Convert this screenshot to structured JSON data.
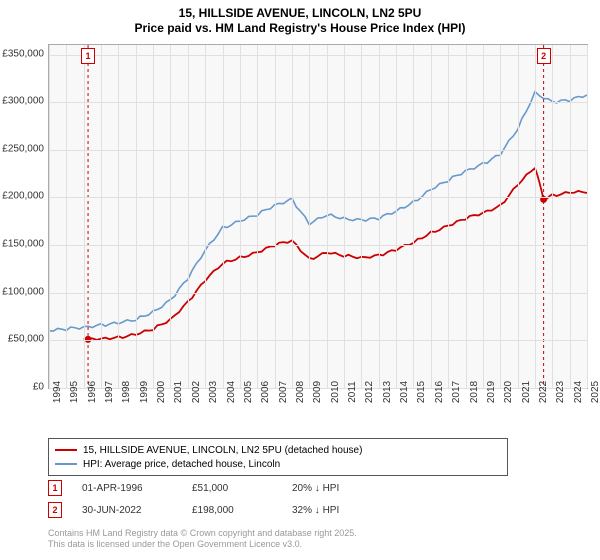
{
  "chart": {
    "title_line1": "15, HILLSIDE AVENUE, LINCOLN, LN2 5PU",
    "title_line2": "Price paid vs. HM Land Registry's House Price Index (HPI)",
    "background_color": "#f8f8f8",
    "grid_color": "#e0e0e0",
    "border_color": "#aaaaaa",
    "x_years": [
      1994,
      1995,
      1996,
      1997,
      1998,
      1999,
      2000,
      2001,
      2002,
      2003,
      2004,
      2005,
      2006,
      2007,
      2008,
      2009,
      2010,
      2011,
      2012,
      2013,
      2014,
      2015,
      2016,
      2017,
      2018,
      2019,
      2020,
      2021,
      2022,
      2023,
      2024,
      2025
    ],
    "y_ticks": [
      0,
      50000,
      100000,
      150000,
      200000,
      250000,
      300000,
      350000
    ],
    "y_tick_labels": [
      "£0",
      "£50,000",
      "£100,000",
      "£150,000",
      "£200,000",
      "£250,000",
      "£300,000",
      "£350,000"
    ],
    "ylim": [
      0,
      360000
    ],
    "series": {
      "hpi": {
        "color": "#6699cc",
        "width": 1.6,
        "label": "HPI: Average price, detached house, Lincoln",
        "points": [
          [
            1994,
            60000
          ],
          [
            1995,
            62000
          ],
          [
            1996,
            64000
          ],
          [
            1997,
            66000
          ],
          [
            1998,
            68000
          ],
          [
            1999,
            72000
          ],
          [
            2000,
            80000
          ],
          [
            2001,
            92000
          ],
          [
            2002,
            115000
          ],
          [
            2003,
            145000
          ],
          [
            2004,
            168000
          ],
          [
            2005,
            175000
          ],
          [
            2006,
            182000
          ],
          [
            2007,
            192000
          ],
          [
            2008,
            198000
          ],
          [
            2009,
            172000
          ],
          [
            2010,
            182000
          ],
          [
            2011,
            178000
          ],
          [
            2012,
            176000
          ],
          [
            2013,
            178000
          ],
          [
            2014,
            186000
          ],
          [
            2015,
            195000
          ],
          [
            2016,
            208000
          ],
          [
            2017,
            218000
          ],
          [
            2018,
            228000
          ],
          [
            2019,
            235000
          ],
          [
            2020,
            245000
          ],
          [
            2021,
            272000
          ],
          [
            2022,
            310000
          ],
          [
            2023,
            300000
          ],
          [
            2024,
            302000
          ],
          [
            2025,
            308000
          ]
        ]
      },
      "property": {
        "color": "#cc0000",
        "width": 1.8,
        "label": "15, HILLSIDE AVENUE, LINCOLN, LN2 5PU (detached house)",
        "points": [
          [
            1996,
            51000
          ],
          [
            1997,
            52000
          ],
          [
            1998,
            53000
          ],
          [
            1999,
            56000
          ],
          [
            2000,
            62000
          ],
          [
            2001,
            72000
          ],
          [
            2002,
            90000
          ],
          [
            2003,
            113000
          ],
          [
            2004,
            131000
          ],
          [
            2005,
            137000
          ],
          [
            2006,
            142000
          ],
          [
            2007,
            150000
          ],
          [
            2008,
            155000
          ],
          [
            2009,
            135000
          ],
          [
            2010,
            142000
          ],
          [
            2011,
            139000
          ],
          [
            2012,
            137000
          ],
          [
            2013,
            139000
          ],
          [
            2014,
            145000
          ],
          [
            2015,
            153000
          ],
          [
            2016,
            163000
          ],
          [
            2017,
            170000
          ],
          [
            2018,
            178000
          ],
          [
            2019,
            184000
          ],
          [
            2020,
            191000
          ],
          [
            2021,
            213000
          ],
          [
            2022,
            232000
          ],
          [
            2022.5,
            198000
          ],
          [
            2023,
            202000
          ],
          [
            2024,
            205000
          ],
          [
            2025,
            206000
          ]
        ]
      }
    },
    "markers": [
      {
        "n": "1",
        "year": 1996.25,
        "value": 51000
      },
      {
        "n": "2",
        "year": 2022.5,
        "value": 198000
      }
    ]
  },
  "transactions": [
    {
      "n": "1",
      "date": "01-APR-1996",
      "price": "£51,000",
      "pct": "20% ↓ HPI"
    },
    {
      "n": "2",
      "date": "30-JUN-2022",
      "price": "£198,000",
      "pct": "32% ↓ HPI"
    }
  ],
  "footer": {
    "line1": "Contains HM Land Registry data © Crown copyright and database right 2025.",
    "line2": "This data is licensed under the Open Government Licence v3.0."
  }
}
